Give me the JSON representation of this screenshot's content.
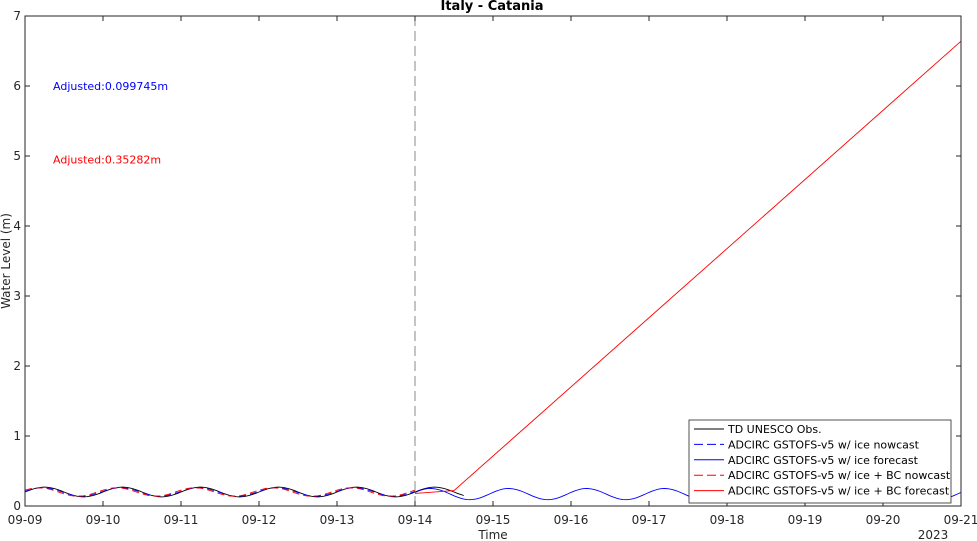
{
  "chart_data": {
    "type": "line",
    "title": "Italy - Catania",
    "xlabel": "Time",
    "ylabel": "Water Level (m)",
    "year_label": "2023",
    "x_tick_labels": [
      "09-09",
      "09-10",
      "09-11",
      "09-12",
      "09-13",
      "09-14",
      "09-15",
      "09-16",
      "09-17",
      "09-18",
      "09-19",
      "09-20",
      "09-21"
    ],
    "xlim": [
      "2023-09-09",
      "2023-09-21"
    ],
    "ylim": [
      0,
      7
    ],
    "y_ticks": [
      0,
      1,
      2,
      3,
      4,
      5,
      6,
      7
    ],
    "grid": false,
    "legend_position": "bottom-right",
    "nowcast_forecast_boundary": "2023-09-14",
    "annotations": [
      {
        "text": "Adjusted:0.099745m",
        "color": "#0000ff"
      },
      {
        "text": "Adjusted:0.35282m",
        "color": "#ff0000"
      }
    ],
    "series": [
      {
        "name": "TD UNESCO Obs.",
        "color": "#000000",
        "style": "solid",
        "x_start": "2023-09-09",
        "x_end": "2023-09-14 15:00",
        "mean": 0.2,
        "amplitude": 0.07,
        "period_hours": 24
      },
      {
        "name": "ADCIRC GSTOFS-v5 w/ ice nowcast",
        "color": "#0000ff",
        "style": "dashed",
        "x_start": "2023-09-09",
        "x_end": "2023-09-14",
        "mean": 0.2,
        "amplitude": 0.06,
        "period_hours": 24
      },
      {
        "name": "ADCIRC GSTOFS-v5 w/ ice forecast",
        "color": "#0000ff",
        "style": "solid",
        "x_start": "2023-09-14",
        "x_end": "2023-09-21",
        "mean": 0.17,
        "amplitude": 0.08,
        "period_hours": 24
      },
      {
        "name": "ADCIRC GSTOFS-v5 w/ ice + BC nowcast",
        "color": "#ff0000",
        "style": "dashed",
        "x_start": "2023-09-09",
        "x_end": "2023-09-14",
        "mean": 0.2,
        "amplitude": 0.06,
        "period_hours": 24
      },
      {
        "name": "ADCIRC GSTOFS-v5 w/ ice + BC forecast",
        "color": "#ff0000",
        "style": "solid",
        "x_start": "2023-09-14",
        "x_end": "2023-09-21",
        "points": [
          [
            "2023-09-14",
            0.18
          ],
          [
            "2023-09-14 12:00",
            0.22
          ],
          [
            "2023-09-21",
            6.64
          ]
        ]
      }
    ]
  }
}
